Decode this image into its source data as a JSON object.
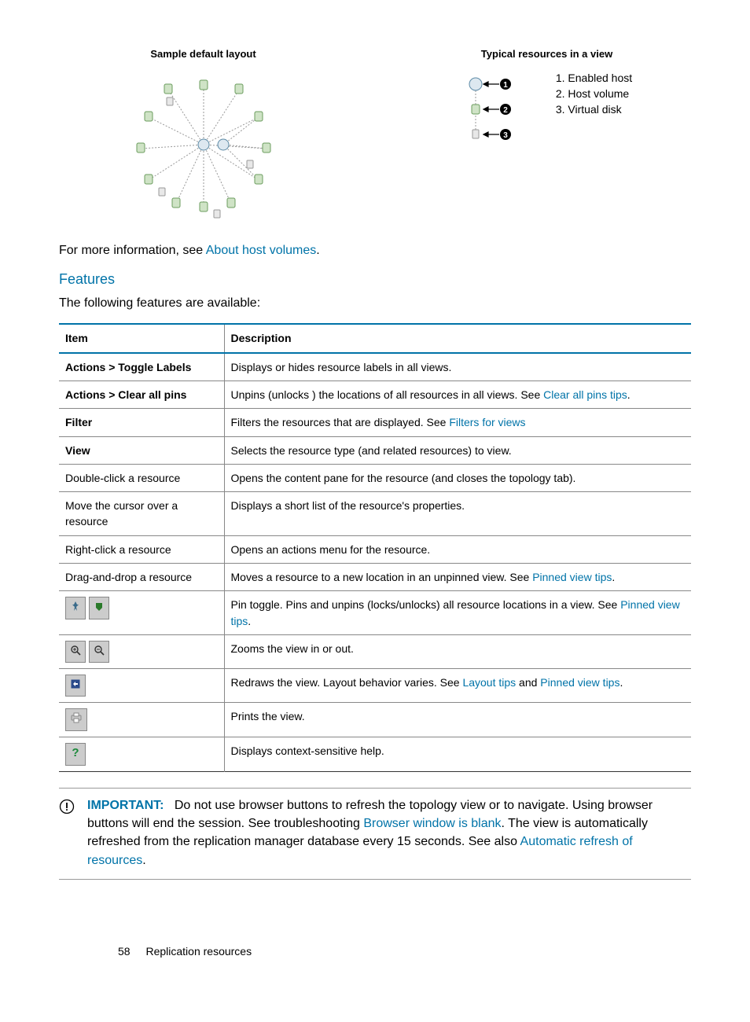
{
  "figures": {
    "left_title": "Sample default layout",
    "right_title": "Typical resources in a view",
    "legend": [
      "1. Enabled host",
      "2. Host volume",
      "3. Virtual disk"
    ]
  },
  "intro": {
    "prefix": "For more information, see ",
    "link": "About host volumes",
    "suffix": "."
  },
  "section_title": "Features",
  "section_intro": "The following features are available:",
  "table": {
    "headers": [
      "Item",
      "Description"
    ],
    "rows": [
      {
        "item": "Actions > Toggle Labels",
        "item_bold": true,
        "desc_parts": [
          [
            "text",
            "Displays or hides resource labels in all views."
          ]
        ]
      },
      {
        "item": "Actions > Clear all pins",
        "item_bold": true,
        "desc_parts": [
          [
            "text",
            "Unpins (unlocks ) the locations of all resources in all views. See "
          ],
          [
            "link",
            "Clear all pins tips"
          ],
          [
            "text",
            "."
          ]
        ]
      },
      {
        "item": "Filter",
        "item_bold": true,
        "desc_parts": [
          [
            "text",
            "Filters the resources that are displayed. See "
          ],
          [
            "link",
            "Filters for views"
          ]
        ]
      },
      {
        "item": "View",
        "item_bold": true,
        "desc_parts": [
          [
            "text",
            "Selects the resource type (and related resources) to view."
          ]
        ]
      },
      {
        "item": "Double-click a resource",
        "item_bold": false,
        "desc_parts": [
          [
            "text",
            "Opens the content pane for the resource (and closes the topology tab)."
          ]
        ]
      },
      {
        "item": "Move the cursor over a resource",
        "item_bold": false,
        "desc_parts": [
          [
            "text",
            "Displays a short list of the resource's properties."
          ]
        ]
      },
      {
        "item": "Right-click a resource",
        "item_bold": false,
        "desc_parts": [
          [
            "text",
            "Opens an actions menu for the resource."
          ]
        ]
      },
      {
        "item": "Drag-and-drop a resource",
        "item_bold": false,
        "desc_parts": [
          [
            "text",
            "Moves a resource to a new location in an unpinned view. See "
          ],
          [
            "link",
            "Pinned view tips"
          ],
          [
            "text",
            "."
          ]
        ]
      },
      {
        "item_icon": "pin",
        "item_bold": false,
        "desc_parts": [
          [
            "text",
            "Pin toggle. Pins and unpins (locks/unlocks) all resource locations in a view. See "
          ],
          [
            "link",
            "Pinned view tips"
          ],
          [
            "text",
            "."
          ]
        ]
      },
      {
        "item_icon": "zoom",
        "item_bold": false,
        "desc_parts": [
          [
            "text",
            "Zooms the view in or out."
          ]
        ]
      },
      {
        "item_icon": "redraw",
        "item_bold": false,
        "desc_parts": [
          [
            "text",
            "Redraws the view. Layout behavior varies. See "
          ],
          [
            "link",
            "Layout tips"
          ],
          [
            "text",
            " and "
          ],
          [
            "link",
            "Pinned view tips"
          ],
          [
            "text",
            "."
          ]
        ]
      },
      {
        "item_icon": "print",
        "item_bold": false,
        "desc_parts": [
          [
            "text",
            "Prints the view."
          ]
        ]
      },
      {
        "item_icon": "help",
        "item_bold": false,
        "desc_parts": [
          [
            "text",
            "Displays context-sensitive help."
          ]
        ]
      }
    ]
  },
  "admon": {
    "label": "IMPORTANT:",
    "parts": [
      [
        "text",
        "Do not use browser buttons to refresh the topology view or to navigate. Using browser buttons will end the session. See troubleshooting "
      ],
      [
        "link",
        "Browser window is blank"
      ],
      [
        "text",
        ". The view is automatically refreshed from the replication manager database every 15 seconds. See also "
      ],
      [
        "link",
        "Automatic refresh of resources"
      ],
      [
        "text",
        "."
      ]
    ]
  },
  "footer": {
    "page": "58",
    "section": "Replication resources"
  },
  "colors": {
    "link": "#0073a8",
    "border": "#888"
  }
}
